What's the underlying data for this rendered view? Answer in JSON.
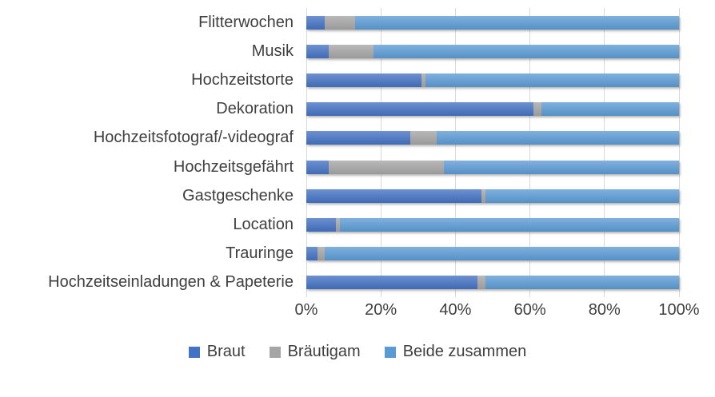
{
  "chart_data": {
    "type": "bar",
    "orientation": "horizontal",
    "stacked": true,
    "title": "",
    "xlabel": "",
    "ylabel": "",
    "grid": true,
    "grid_color": "#D9D9D9",
    "text_color": "#3F3F3F",
    "categories": [
      "Flitterwochen",
      "Musik",
      "Hochzeitstorte",
      "Dekoration",
      "Hochzeitsfotograf/-videograf",
      "Hochzeitsgefährt",
      "Gastgeschenke",
      "Location",
      "Trauringe",
      "Hochzeitseinladungen & Papeterie"
    ],
    "series": [
      {
        "key": "braut",
        "name": "Braut",
        "color": "#4472C4",
        "values": [
          5,
          6,
          31,
          61,
          28,
          6,
          47,
          8,
          3,
          46
        ]
      },
      {
        "key": "braeutigam",
        "name": "Bräutigam",
        "color": "#A5A5A5",
        "values": [
          8,
          12,
          1,
          2,
          7,
          31,
          1,
          1,
          2,
          2
        ]
      },
      {
        "key": "beide-zusammen",
        "name": "Beide zusammen",
        "color": "#5B9BD5",
        "values": [
          87,
          82,
          68,
          37,
          65,
          63,
          52,
          91,
          95,
          52
        ]
      }
    ],
    "x_axis": {
      "min": 0,
      "max": 100,
      "tick_labels": [
        "0%",
        "20%",
        "40%",
        "60%",
        "80%",
        "100%"
      ]
    },
    "legend": {
      "position": "bottom",
      "entries": [
        "Braut",
        "Bräutigam",
        "Beide zusammen"
      ]
    }
  }
}
